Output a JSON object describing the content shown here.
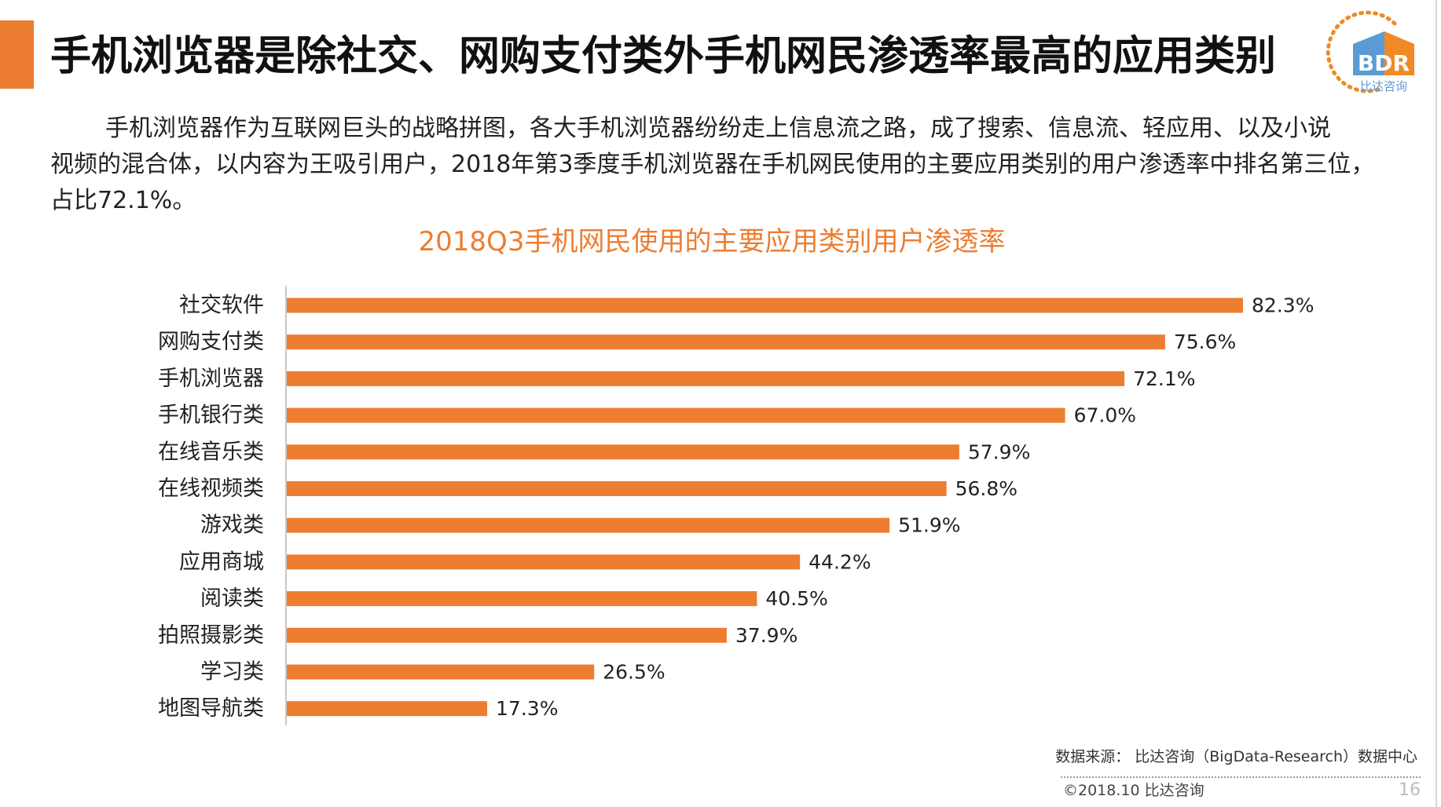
{
  "slide": {
    "accent_color": "#ed7d31",
    "title": "手机浏览器是除社交、网购支付类外手机网民渗透率最高的应用类别",
    "logo": {
      "icon": "bdr-logo-icon",
      "wordmark": "BDR",
      "subtext": "比达咨询",
      "colors": {
        "orange": "#f08a24",
        "blue": "#5b9bd5"
      }
    },
    "paragraph_lines": [
      "手机浏览器作为互联网巨头的战略拼图，各大手机浏览器纷纷走上信息流之路，成了搜索、信息流、轻应用、以及小说",
      "视频的混合体，以内容为王吸引用户，2018年第3季度手机浏览器在手机网民使用的主要应用类别的用户渗透率中排名第三位，",
      "占比72.1%。"
    ],
    "footer": {
      "source": "数据来源： 比达咨询（BigData-Research）数据中心",
      "copyright": "©2018.10 比达咨询",
      "page_number": "16"
    }
  },
  "chart_data": {
    "type": "bar",
    "orientation": "horizontal",
    "title": "2018Q3手机网民使用的主要应用类别用户渗透率",
    "categories": [
      "社交软件",
      "网购支付类",
      "手机浏览器",
      "手机银行类",
      "在线音乐类",
      "在线视频类",
      "游戏类",
      "应用商城",
      "阅读类",
      "拍照摄影类",
      "学习类",
      "地图导航类"
    ],
    "values": [
      82.3,
      75.6,
      72.1,
      67.0,
      57.9,
      56.8,
      51.9,
      44.2,
      40.5,
      37.9,
      26.5,
      17.3
    ],
    "value_labels": [
      "82.3%",
      "75.6%",
      "72.1%",
      "67.0%",
      "57.9%",
      "56.8%",
      "51.9%",
      "44.2%",
      "40.5%",
      "37.9%",
      "26.5%",
      "17.3%"
    ],
    "bar_color": "#ed7d31",
    "title_color": "#ed7d31",
    "legend": "none",
    "grid": false
  }
}
